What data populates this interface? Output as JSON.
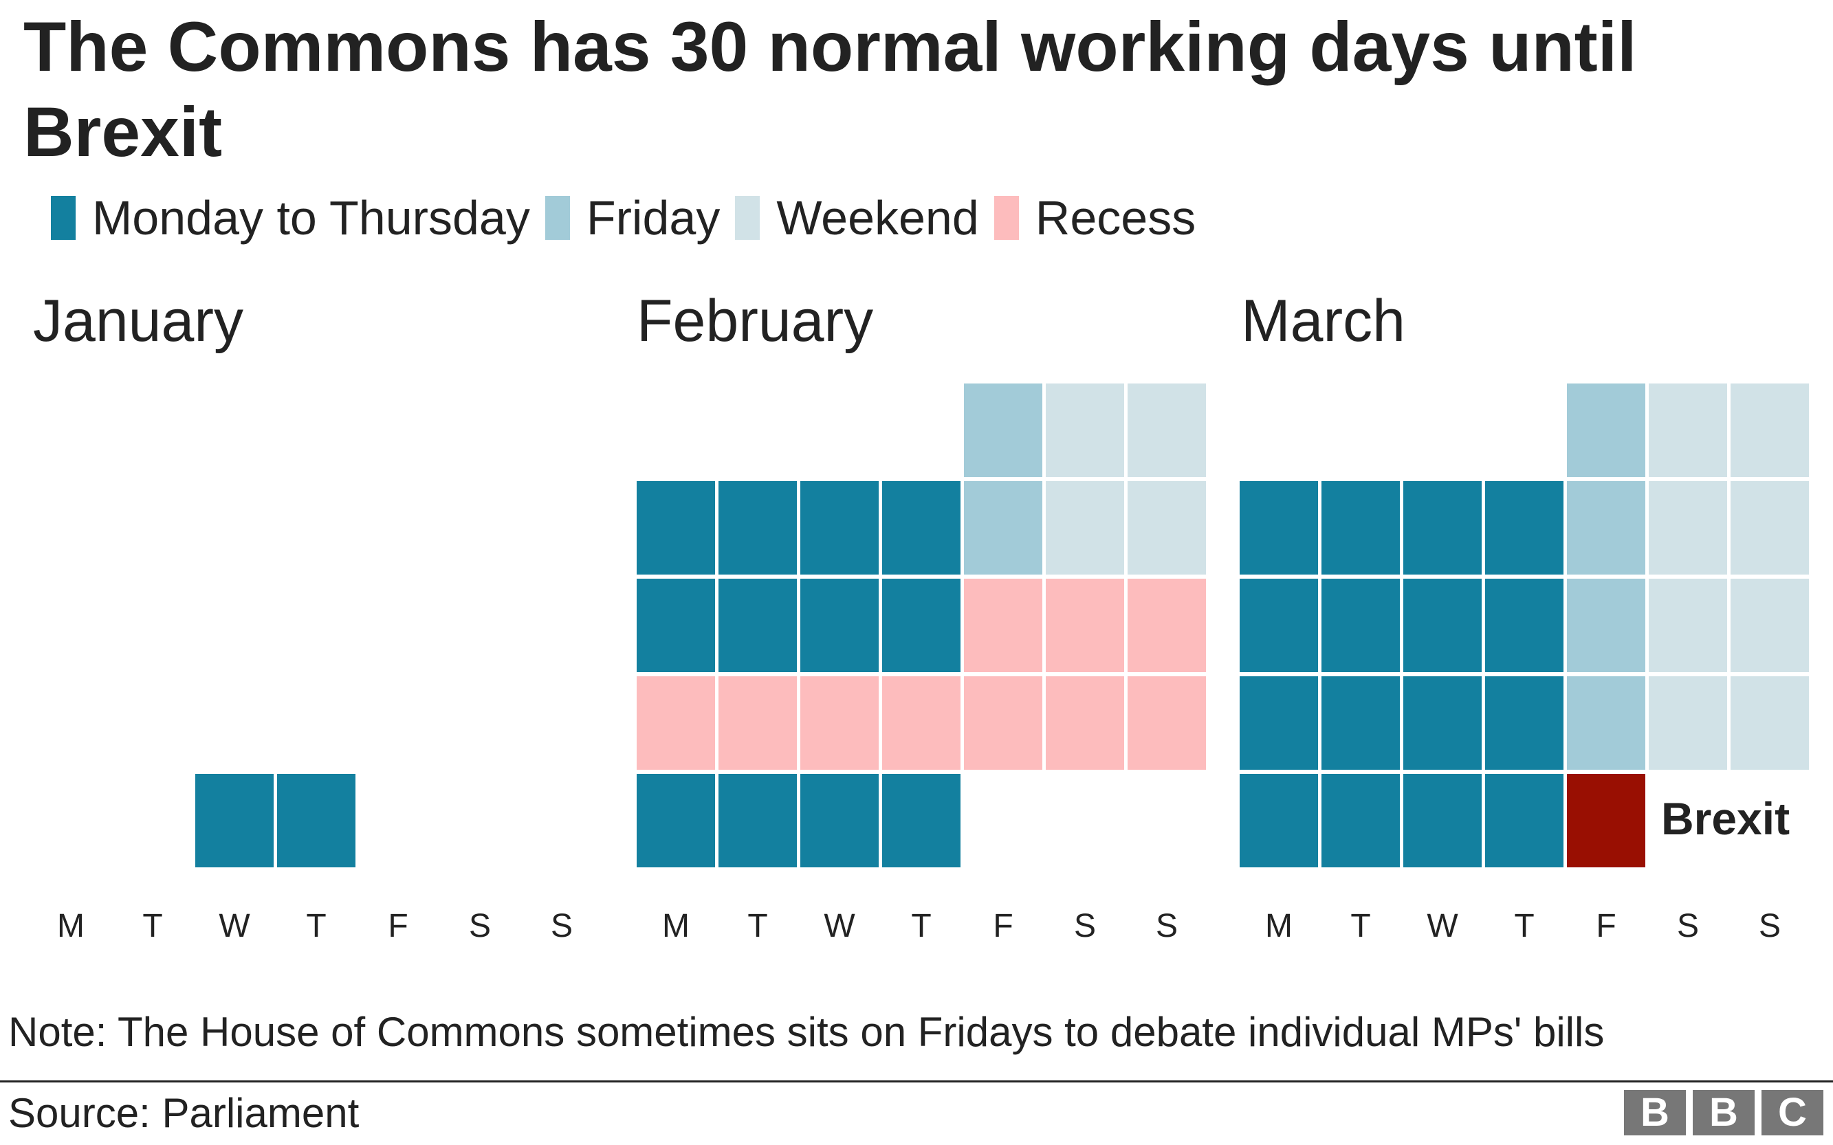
{
  "title": "The Commons has 30 normal working days until Brexit",
  "legend": [
    {
      "label": "Monday to Thursday",
      "color": "#13809f"
    },
    {
      "label": "Friday",
      "color": "#a2cbd8"
    },
    {
      "label": "Weekend",
      "color": "#d1e2e7"
    },
    {
      "label": "Recess",
      "color": "#fdbcbd"
    }
  ],
  "brexit_color": "#990f02",
  "chart_data": {
    "type": "heatmap",
    "title": "The Commons has 30 normal working days until Brexit",
    "day_labels": [
      "M",
      "T",
      "W",
      "T",
      "F",
      "S",
      "S"
    ],
    "categories": [
      "Monday to Thursday",
      "Friday",
      "Weekend",
      "Recess",
      "Brexit"
    ],
    "months": [
      {
        "name": "January",
        "weeks": [
          [
            null,
            null,
            "Monday to Thursday",
            "Monday to Thursday",
            null,
            null,
            null
          ]
        ]
      },
      {
        "name": "February",
        "weeks": [
          [
            null,
            null,
            null,
            null,
            "Friday",
            "Weekend",
            "Weekend"
          ],
          [
            "Monday to Thursday",
            "Monday to Thursday",
            "Monday to Thursday",
            "Monday to Thursday",
            "Friday",
            "Weekend",
            "Weekend"
          ],
          [
            "Monday to Thursday",
            "Monday to Thursday",
            "Monday to Thursday",
            "Monday to Thursday",
            "Recess",
            "Recess",
            "Recess"
          ],
          [
            "Recess",
            "Recess",
            "Recess",
            "Recess",
            "Recess",
            "Recess",
            "Recess"
          ],
          [
            "Monday to Thursday",
            "Monday to Thursday",
            "Monday to Thursday",
            "Monday to Thursday",
            null,
            null,
            null
          ]
        ]
      },
      {
        "name": "March",
        "weeks": [
          [
            null,
            null,
            null,
            null,
            "Friday",
            "Weekend",
            "Weekend"
          ],
          [
            "Monday to Thursday",
            "Monday to Thursday",
            "Monday to Thursday",
            "Monday to Thursday",
            "Friday",
            "Weekend",
            "Weekend"
          ],
          [
            "Monday to Thursday",
            "Monday to Thursday",
            "Monday to Thursday",
            "Monday to Thursday",
            "Friday",
            "Weekend",
            "Weekend"
          ],
          [
            "Monday to Thursday",
            "Monday to Thursday",
            "Monday to Thursday",
            "Monday to Thursday",
            "Friday",
            "Weekend",
            "Weekend"
          ],
          [
            "Monday to Thursday",
            "Monday to Thursday",
            "Monday to Thursday",
            "Monday to Thursday",
            "Brexit",
            null,
            null
          ]
        ]
      }
    ],
    "annotation": "Brexit"
  },
  "note": "Note: The House of Commons sometimes sits on Fridays to debate individual MPs' bills",
  "source": "Source: Parliament",
  "logo": [
    "B",
    "B",
    "C"
  ]
}
